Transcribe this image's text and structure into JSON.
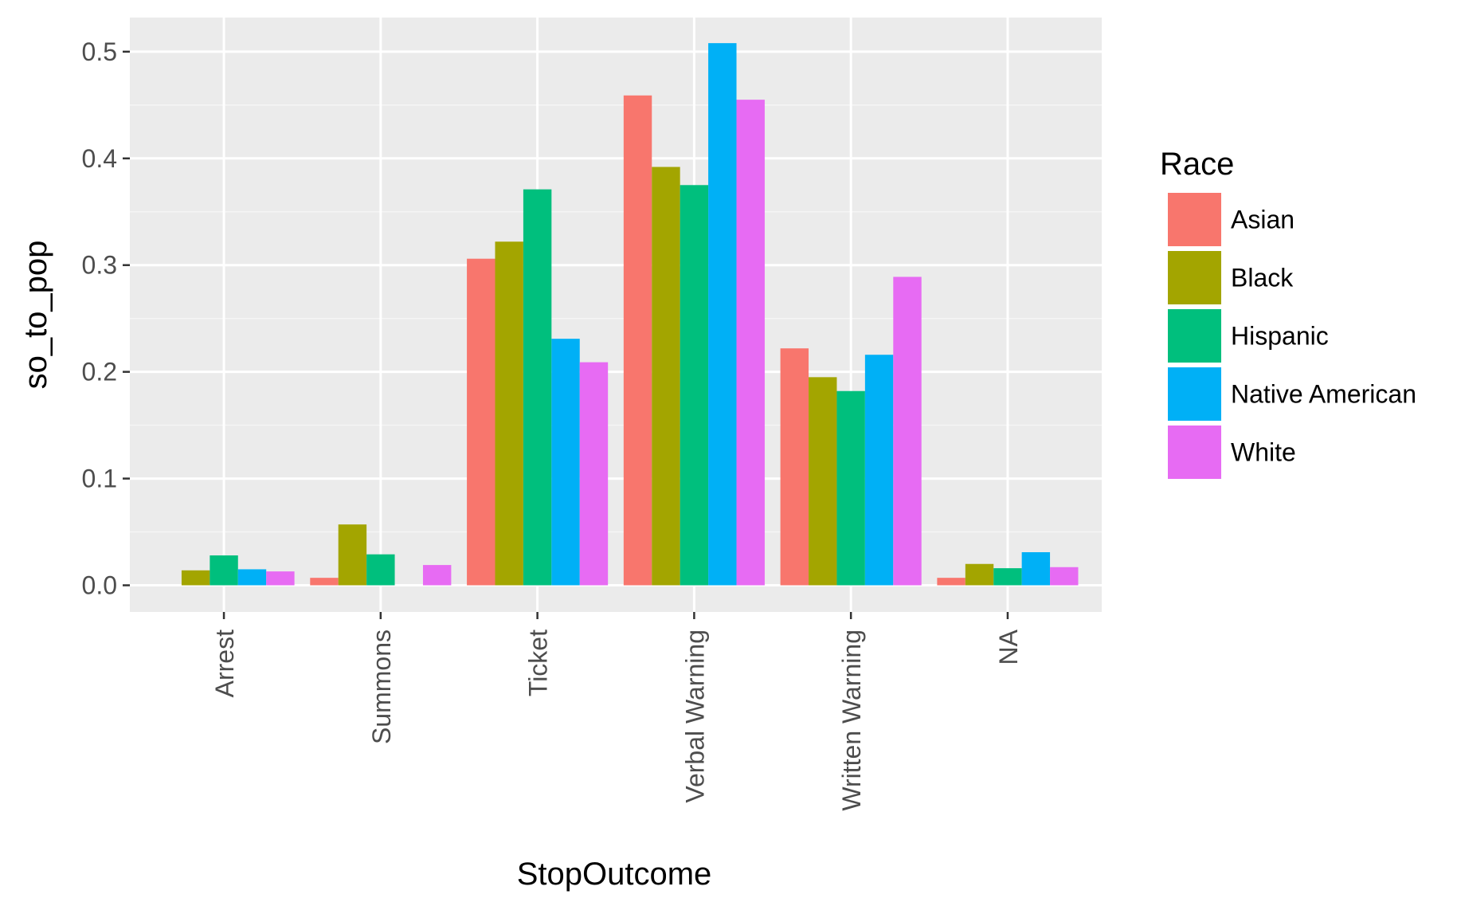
{
  "chart_data": {
    "type": "bar",
    "title": "",
    "xlabel": "StopOutcome",
    "ylabel": "so_to_pop",
    "categories": [
      "Arrest",
      "Summons",
      "Ticket",
      "Verbal Warning",
      "Written Warning",
      "NA"
    ],
    "ylim": [
      -0.025,
      0.532
    ],
    "yticks": [
      0.0,
      0.1,
      0.2,
      0.3,
      0.4,
      0.5
    ],
    "ytick_labels": [
      "0.0",
      "0.1",
      "0.2",
      "0.3",
      "0.4",
      "0.5"
    ],
    "grid": true,
    "legend": {
      "title": "Race",
      "position": "right"
    },
    "series": [
      {
        "name": "Asian",
        "color": "#F8766D",
        "values": [
          null,
          0.007,
          0.306,
          0.459,
          0.222,
          0.007
        ]
      },
      {
        "name": "Black",
        "color": "#A3A500",
        "values": [
          0.014,
          0.057,
          0.322,
          0.392,
          0.195,
          0.02
        ]
      },
      {
        "name": "Hispanic",
        "color": "#00BF7D",
        "values": [
          0.028,
          0.029,
          0.371,
          0.375,
          0.182,
          0.016
        ]
      },
      {
        "name": "Native American",
        "color": "#00B0F6",
        "values": [
          0.015,
          null,
          0.231,
          0.508,
          0.216,
          0.031
        ]
      },
      {
        "name": "White",
        "color": "#E76BF3",
        "values": [
          0.013,
          0.019,
          0.209,
          0.455,
          0.289,
          0.017
        ]
      }
    ]
  },
  "colors": {
    "panel_background": "#EBEBEB",
    "grid_major": "#FFFFFF",
    "grid_minor": "#F5F5F5",
    "tick_color": "#333333"
  }
}
